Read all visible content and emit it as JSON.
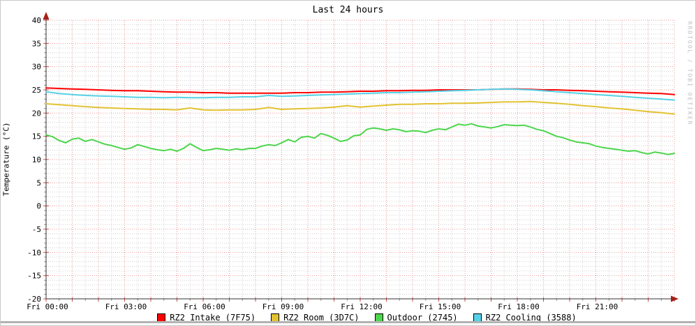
{
  "title": "Last 24 hours",
  "watermark": "RRDTOOL / TOBI OETIKER",
  "colors": {
    "axis": "#333333",
    "arrow": "#a52019",
    "grid_major": "#ea9999",
    "grid_minor": "#d0d0d0",
    "tick_major": "#cc4444",
    "tick_minor": "#999999",
    "label_text": "#000000",
    "watermark_text": "#bcbcbc",
    "border": "#c8c8c8",
    "bottom_bar": "#b2b2b2"
  },
  "chart_data": {
    "type": "line",
    "title": "Last 24 hours",
    "xlabel": "",
    "ylabel": "Temperature (°C)",
    "ylim": [
      -20,
      40
    ],
    "y_major_step": 5,
    "y_minor_step": 1,
    "x_hours": 24,
    "x_major_step_hours": 1,
    "x_minor_step_hours": 0.5,
    "x_label_step_hours": 3,
    "grid": true,
    "legend_position": "bottom",
    "x_tick_labels": [
      "Fri 00:00",
      "Fri 03:00",
      "Fri 06:00",
      "Fri 09:00",
      "Fri 12:00",
      "Fri 15:00",
      "Fri 18:00",
      "Fri 21:00"
    ],
    "y_tick_labels": [
      "40",
      "35",
      "30",
      "25",
      "20",
      "15",
      "10",
      "5",
      "0",
      "-5",
      "-10",
      "-15",
      "-20"
    ],
    "series": [
      {
        "name": "RZ2 Intake (7F75)",
        "color": "#ff0000",
        "values": [
          25.4,
          25.3,
          25.2,
          25.1,
          25.0,
          24.9,
          24.8,
          24.8,
          24.7,
          24.6,
          24.5,
          24.5,
          24.4,
          24.4,
          24.3,
          24.3,
          24.3,
          24.3,
          24.3,
          24.4,
          24.4,
          24.5,
          24.5,
          24.6,
          24.7,
          24.7,
          24.8,
          24.8,
          24.9,
          24.9,
          25.0,
          25.0,
          25.0,
          25.0,
          25.1,
          25.2,
          25.2,
          25.1,
          25.0,
          25.0,
          24.9,
          24.8,
          24.7,
          24.6,
          24.5,
          24.4,
          24.3,
          24.2,
          24.0
        ]
      },
      {
        "name": "RZ2 Room (3D7C)",
        "color": "#e2c232",
        "values": [
          22.0,
          21.8,
          21.6,
          21.4,
          21.2,
          21.1,
          21.0,
          20.9,
          20.8,
          20.8,
          20.7,
          21.1,
          20.7,
          20.6,
          20.7,
          20.7,
          20.8,
          21.2,
          20.8,
          20.9,
          21.0,
          21.1,
          21.3,
          21.6,
          21.3,
          21.5,
          21.7,
          21.9,
          21.9,
          22.0,
          22.0,
          22.1,
          22.1,
          22.2,
          22.3,
          22.4,
          22.4,
          22.5,
          22.3,
          22.1,
          21.9,
          21.6,
          21.4,
          21.1,
          20.9,
          20.6,
          20.3,
          20.1,
          19.8
        ]
      },
      {
        "name": "Outdoor (2745)",
        "color": "#4cd64c",
        "values": [
          15.3,
          14.9,
          14.1,
          13.6,
          14.4,
          14.6,
          13.9,
          14.3,
          13.8,
          13.3,
          13.0,
          12.6,
          12.2,
          12.5,
          13.2,
          12.8,
          12.4,
          12.1,
          11.9,
          12.2,
          11.8,
          12.4,
          13.4,
          12.6,
          11.9,
          12.1,
          12.4,
          12.2,
          12.0,
          12.3,
          12.1,
          12.4,
          12.4,
          12.9,
          13.2,
          13.0,
          13.6,
          14.3,
          13.8,
          14.8,
          15.0,
          14.6,
          15.6,
          15.2,
          14.6,
          13.9,
          14.2,
          15.1,
          15.3,
          16.5,
          16.8,
          16.6,
          16.3,
          16.6,
          16.4,
          16.0,
          16.2,
          16.1,
          15.8,
          16.3,
          16.6,
          16.4,
          17.0,
          17.6,
          17.4,
          17.7,
          17.2,
          17.0,
          16.8,
          17.1,
          17.5,
          17.4,
          17.3,
          17.4,
          17.0,
          16.5,
          16.2,
          15.6,
          15.0,
          14.7,
          14.2,
          13.8,
          13.6,
          13.4,
          12.9,
          12.6,
          12.4,
          12.2,
          12.0,
          11.8,
          11.9,
          11.5,
          11.2,
          11.6,
          11.4,
          11.1,
          11.3
        ]
      },
      {
        "name": "RZ2 Cooling (3588)",
        "color": "#55d2e6",
        "values": [
          24.6,
          24.2,
          24.0,
          23.8,
          23.7,
          23.6,
          23.5,
          23.4,
          23.4,
          23.3,
          23.4,
          23.3,
          23.3,
          23.4,
          23.4,
          23.5,
          23.5,
          23.8,
          23.6,
          23.7,
          23.8,
          23.9,
          24.0,
          24.1,
          24.2,
          24.3,
          24.4,
          24.4,
          24.5,
          24.6,
          24.7,
          24.8,
          24.9,
          25.0,
          25.1,
          25.2,
          25.1,
          25.0,
          24.8,
          24.6,
          24.4,
          24.2,
          24.0,
          23.8,
          23.6,
          23.4,
          23.2,
          23.0,
          22.8
        ]
      }
    ]
  }
}
